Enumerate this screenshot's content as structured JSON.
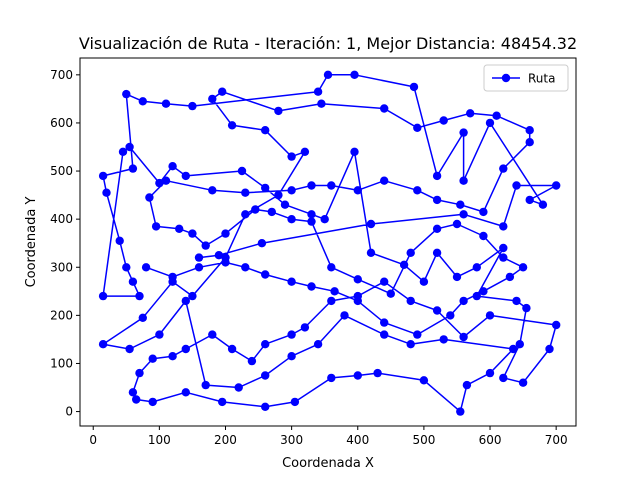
{
  "chart_data": {
    "type": "line",
    "title": "Visualización de Ruta - Iteración: 1, Mejor Distancia: 48454.32",
    "xlabel": "Coordenada X",
    "ylabel": "Coordenada Y",
    "xlim": [
      -20,
      730
    ],
    "ylim": [
      -30,
      735
    ],
    "xticks": [
      0,
      100,
      200,
      300,
      400,
      500,
      600,
      700
    ],
    "yticks": [
      0,
      100,
      200,
      300,
      400,
      500,
      600,
      700
    ],
    "grid": false,
    "legend_position": "top-right",
    "series": [
      {
        "name": "Ruta",
        "color": "#0000ff",
        "marker": "circle",
        "points": [
          [
            160,
            320
          ],
          [
            190,
            325
          ],
          [
            255,
            350
          ],
          [
            420,
            390
          ],
          [
            560,
            410
          ],
          [
            620,
            385
          ],
          [
            640,
            470
          ],
          [
            700,
            470
          ],
          [
            660,
            440
          ],
          [
            680,
            430
          ],
          [
            600,
            600
          ],
          [
            560,
            480
          ],
          [
            560,
            580
          ],
          [
            520,
            490
          ],
          [
            485,
            675
          ],
          [
            395,
            700
          ],
          [
            355,
            700
          ],
          [
            340,
            665
          ],
          [
            150,
            635
          ],
          [
            110,
            640
          ],
          [
            75,
            645
          ],
          [
            50,
            660
          ],
          [
            60,
            505
          ],
          [
            15,
            490
          ],
          [
            20,
            455
          ],
          [
            40,
            355
          ],
          [
            50,
            300
          ],
          [
            60,
            270
          ],
          [
            70,
            240
          ],
          [
            15,
            240
          ],
          [
            45,
            540
          ],
          [
            55,
            550
          ],
          [
            100,
            475
          ],
          [
            120,
            510
          ],
          [
            140,
            490
          ],
          [
            225,
            500
          ],
          [
            260,
            465
          ],
          [
            290,
            430
          ],
          [
            330,
            410
          ],
          [
            350,
            400
          ],
          [
            395,
            540
          ],
          [
            420,
            330
          ],
          [
            470,
            305
          ],
          [
            500,
            270
          ],
          [
            520,
            330
          ],
          [
            550,
            280
          ],
          [
            580,
            300
          ],
          [
            620,
            340
          ],
          [
            580,
            240
          ],
          [
            640,
            230
          ],
          [
            655,
            215
          ],
          [
            645,
            140
          ],
          [
            620,
            70
          ],
          [
            650,
            60
          ],
          [
            690,
            130
          ],
          [
            700,
            180
          ],
          [
            600,
            200
          ],
          [
            560,
            155
          ],
          [
            520,
            210
          ],
          [
            480,
            230
          ],
          [
            440,
            270
          ],
          [
            400,
            240
          ],
          [
            360,
            230
          ],
          [
            320,
            175
          ],
          [
            300,
            160
          ],
          [
            260,
            140
          ],
          [
            240,
            105
          ],
          [
            210,
            130
          ],
          [
            180,
            160
          ],
          [
            140,
            130
          ],
          [
            120,
            115
          ],
          [
            90,
            110
          ],
          [
            70,
            80
          ],
          [
            60,
            40
          ],
          [
            65,
            25
          ],
          [
            90,
            20
          ],
          [
            140,
            40
          ],
          [
            195,
            20
          ],
          [
            260,
            10
          ],
          [
            305,
            20
          ],
          [
            360,
            70
          ],
          [
            400,
            75
          ],
          [
            430,
            80
          ],
          [
            500,
            65
          ],
          [
            555,
            0
          ],
          [
            565,
            55
          ],
          [
            600,
            80
          ],
          [
            635,
            130
          ],
          [
            530,
            150
          ],
          [
            480,
            140
          ],
          [
            440,
            160
          ],
          [
            380,
            200
          ],
          [
            340,
            140
          ],
          [
            300,
            115
          ],
          [
            260,
            75
          ],
          [
            220,
            50
          ],
          [
            170,
            55
          ],
          [
            140,
            230
          ],
          [
            100,
            160
          ],
          [
            55,
            130
          ],
          [
            15,
            140
          ],
          [
            75,
            195
          ],
          [
            120,
            270
          ],
          [
            150,
            240
          ],
          [
            200,
            320
          ],
          [
            230,
            410
          ],
          [
            280,
            450
          ],
          [
            320,
            540
          ],
          [
            300,
            530
          ],
          [
            260,
            585
          ],
          [
            210,
            595
          ],
          [
            180,
            650
          ],
          [
            195,
            665
          ],
          [
            280,
            625
          ],
          [
            345,
            640
          ],
          [
            440,
            630
          ],
          [
            490,
            590
          ],
          [
            530,
            605
          ],
          [
            570,
            620
          ],
          [
            610,
            615
          ],
          [
            660,
            585
          ],
          [
            660,
            560
          ],
          [
            620,
            505
          ],
          [
            590,
            415
          ],
          [
            555,
            430
          ],
          [
            520,
            440
          ],
          [
            490,
            460
          ],
          [
            440,
            480
          ],
          [
            400,
            460
          ],
          [
            360,
            470
          ],
          [
            330,
            470
          ],
          [
            300,
            460
          ],
          [
            230,
            455
          ],
          [
            180,
            460
          ],
          [
            110,
            480
          ],
          [
            85,
            445
          ],
          [
            95,
            385
          ],
          [
            130,
            380
          ],
          [
            150,
            370
          ],
          [
            170,
            345
          ],
          [
            200,
            370
          ],
          [
            245,
            420
          ],
          [
            270,
            415
          ],
          [
            300,
            400
          ],
          [
            330,
            395
          ],
          [
            360,
            300
          ],
          [
            400,
            275
          ],
          [
            450,
            245
          ],
          [
            480,
            330
          ],
          [
            520,
            380
          ],
          [
            550,
            390
          ],
          [
            590,
            365
          ],
          [
            620,
            320
          ],
          [
            650,
            300
          ],
          [
            630,
            280
          ],
          [
            590,
            250
          ],
          [
            560,
            230
          ],
          [
            540,
            200
          ],
          [
            490,
            160
          ],
          [
            440,
            185
          ],
          [
            400,
            230
          ],
          [
            365,
            250
          ],
          [
            330,
            260
          ],
          [
            300,
            270
          ],
          [
            260,
            285
          ],
          [
            230,
            300
          ],
          [
            200,
            310
          ],
          [
            160,
            300
          ],
          [
            120,
            280
          ],
          [
            80,
            300
          ]
        ]
      }
    ]
  }
}
